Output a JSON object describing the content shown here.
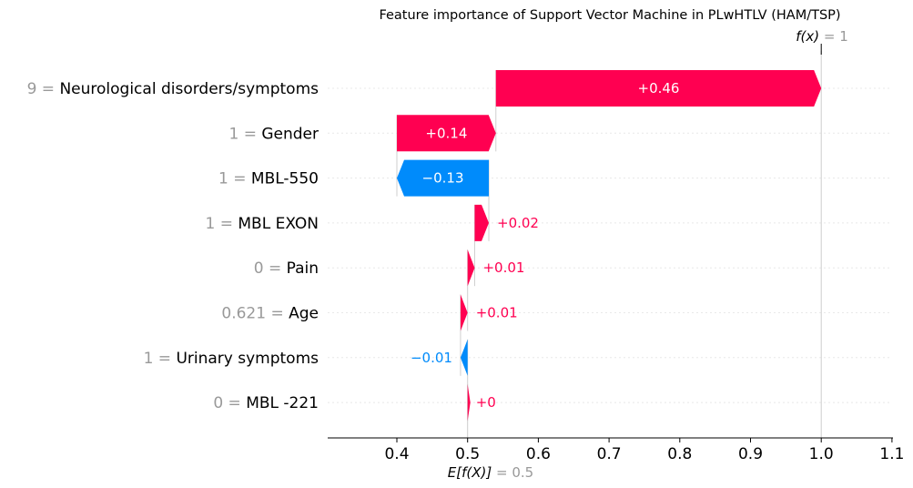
{
  "chart_data": {
    "type": "bar",
    "title": "Feature importance of Support Vector Machine in PLwHTLV (HAM/TSP)",
    "base_value": {
      "label": "E[f(X)]",
      "value": "0.5",
      "num": 0.5
    },
    "output_value": {
      "label": "f(x)",
      "value": "1",
      "num": 1.0
    },
    "xlim": [
      0.3,
      1.1
    ],
    "xticks": [
      0.4,
      0.5,
      0.6,
      0.7,
      0.8,
      0.9,
      1.0,
      1.1
    ],
    "xtick_labels": [
      "0.4",
      "0.5",
      "0.6",
      "0.7",
      "0.8",
      "0.9",
      "1.0",
      "1.1"
    ],
    "colors": {
      "positive": "#ff0051",
      "negative": "#008bfb",
      "value_text": "#999999",
      "grid": "#e6e6e6"
    },
    "features": [
      {
        "value": "9",
        "name": "Neurological disorders/symptoms",
        "shap": 0.46,
        "label": "+0.46",
        "label_inside": true
      },
      {
        "value": "1",
        "name": "Gender",
        "shap": 0.14,
        "label": "+0.14",
        "label_inside": true
      },
      {
        "value": "1",
        "name": "MBL-550",
        "shap": -0.13,
        "label": "−0.13",
        "label_inside": true
      },
      {
        "value": "1",
        "name": "MBL EXON",
        "shap": 0.02,
        "label": "+0.02",
        "label_inside": false
      },
      {
        "value": "0",
        "name": "Pain",
        "shap": 0.01,
        "label": "+0.01",
        "label_inside": false
      },
      {
        "value": "0.621",
        "name": "Age",
        "shap": 0.01,
        "label": "+0.01",
        "label_inside": false
      },
      {
        "value": "1",
        "name": "Urinary symptoms",
        "shap": -0.01,
        "label": "−0.01",
        "label_inside": false
      },
      {
        "value": "0",
        "name": "MBL -221",
        "shap": 0.0,
        "label": "+0",
        "label_inside": false
      }
    ]
  }
}
